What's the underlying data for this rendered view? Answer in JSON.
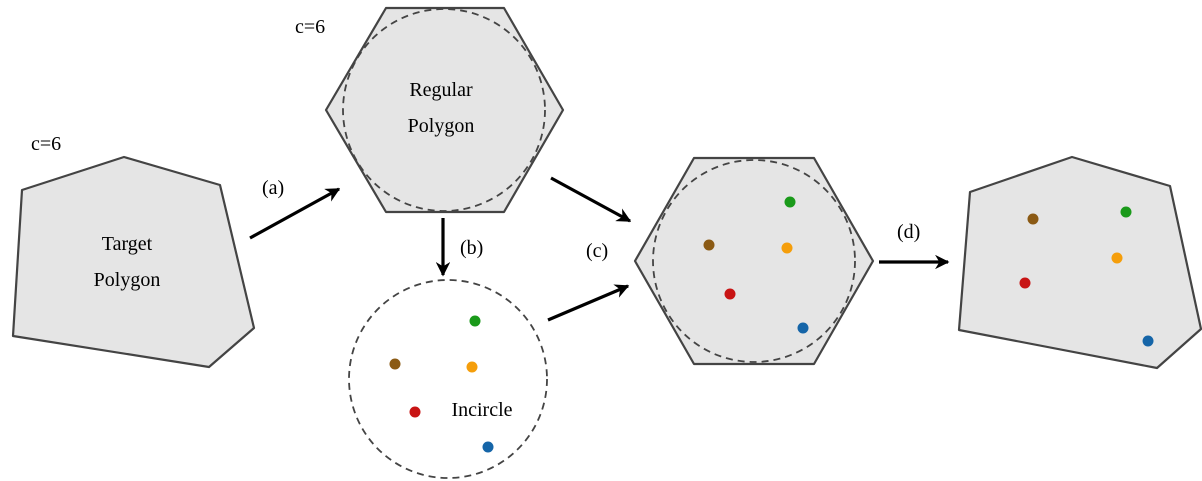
{
  "labels": {
    "c_target": "c=6",
    "c_regular": "c=6",
    "target_line1": "Target",
    "target_line2": "Polygon",
    "regular_line1": "Regular",
    "regular_line2": "Polygon",
    "incircle": "Incircle",
    "step_a": "(a)",
    "step_b": "(b)",
    "step_c": "(c)",
    "step_d": "(d)"
  },
  "colors": {
    "polygon_fill": "#e5e5e5",
    "polygon_stroke": "#444444",
    "point_colors": [
      "#1a9a1a",
      "#8b5a14",
      "#f59e0b",
      "#c81414",
      "#1565a8"
    ]
  },
  "point_names": [
    "green",
    "brown",
    "orange",
    "red",
    "blue"
  ]
}
